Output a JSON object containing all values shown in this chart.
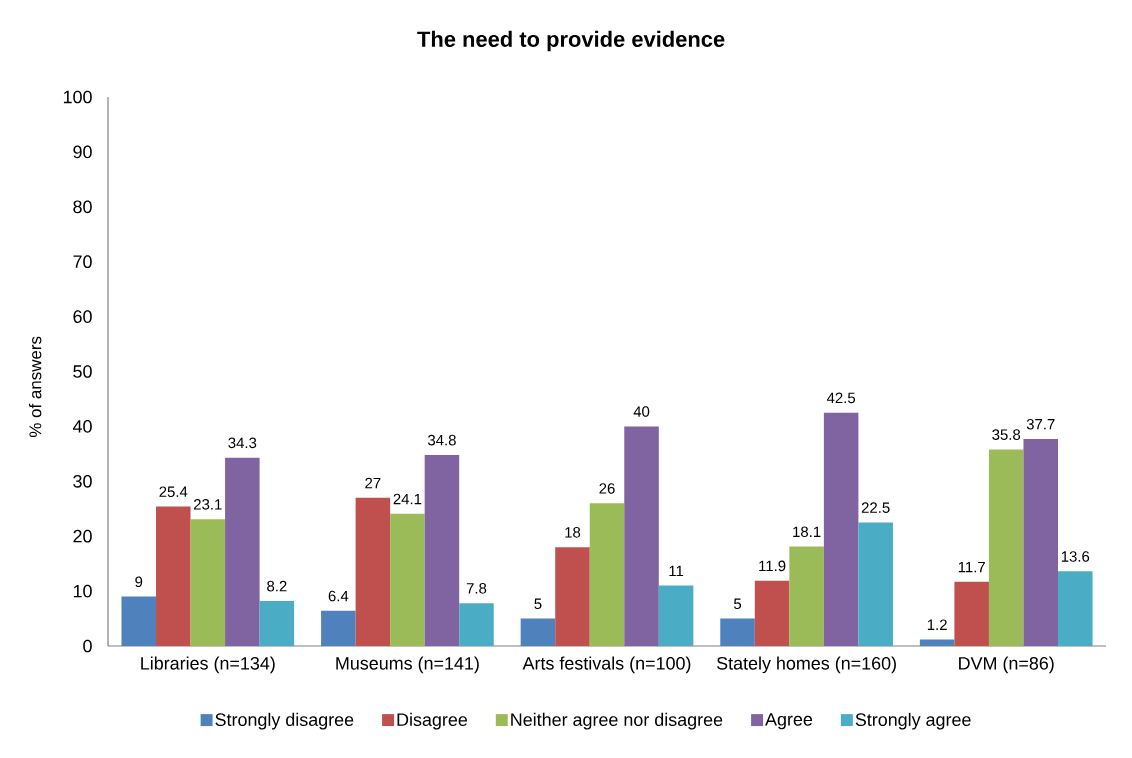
{
  "chart_data": {
    "type": "bar",
    "title": "The need to provide evidence",
    "ylabel": "% of answers",
    "categories": [
      "Libraries (n=134)",
      "Museums (n=141)",
      "Arts festivals (n=100)",
      "Stately homes (n=160)",
      "DVM (n=86)"
    ],
    "series": [
      {
        "name": "Strongly disagree",
        "color": "#4f81bd",
        "values": [
          9,
          6.4,
          5,
          5,
          1.2
        ]
      },
      {
        "name": "Disagree",
        "color": "#c0504d",
        "values": [
          25.4,
          27,
          18,
          11.9,
          11.7
        ]
      },
      {
        "name": "Neither agree nor disagree",
        "color": "#9bbb59",
        "values": [
          23.1,
          24.1,
          26,
          18.1,
          35.8
        ]
      },
      {
        "name": "Agree",
        "color": "#8064a2",
        "values": [
          34.3,
          34.8,
          40,
          42.5,
          37.7
        ]
      },
      {
        "name": "Strongly agree",
        "color": "#4bacc6",
        "values": [
          8.2,
          7.8,
          11,
          22.5,
          13.6
        ]
      }
    ],
    "ylim": [
      0,
      100
    ],
    "yticks": [
      0,
      10,
      20,
      30,
      40,
      50,
      60,
      70,
      80,
      90,
      100
    ],
    "data_labels": true,
    "legend": "bottom"
  }
}
